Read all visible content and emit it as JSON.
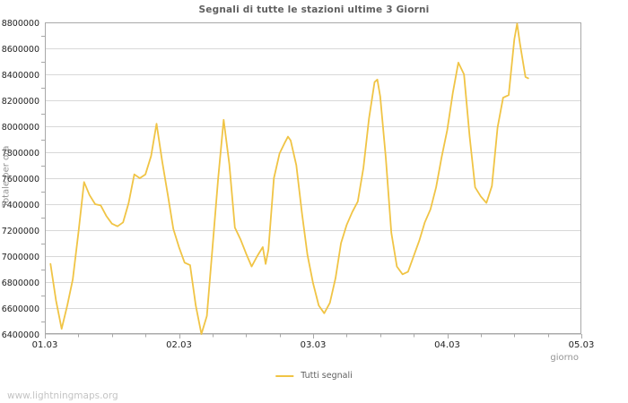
{
  "watermark": "www.lightningmaps.org",
  "colors": {
    "line": "#f0c445",
    "grid": "#d8d8d8",
    "axis": "#a8a8a8",
    "tick_text": "#1f1f1f",
    "title_text": "#5f5f5f",
    "axis_label_text": "#949494",
    "legend_text": "#606060",
    "watermark_text": "#c4c4c4"
  },
  "chart_data": {
    "type": "line",
    "title": "Segnali di tutte le stazioni ultime 3 Giorni",
    "xlabel": "giorno",
    "ylabel": "Totale per ora",
    "xlim": [
      1,
      5
    ],
    "ylim": [
      6400000,
      8800000
    ],
    "y_major_step": 200000,
    "y_minor_step": 100000,
    "x_major_step": 1,
    "x_minor_step": 0.25,
    "grid": "horizontal-major",
    "legend_position": "bottom-center",
    "x_tick_labels": [
      {
        "pos": 1,
        "label": "01.03"
      },
      {
        "pos": 2,
        "label": "02.03"
      },
      {
        "pos": 3,
        "label": "03.03"
      },
      {
        "pos": 4,
        "label": "04.03"
      },
      {
        "pos": 5,
        "label": "05.03"
      }
    ],
    "series": [
      {
        "name": "Tutti segnali",
        "color": "#f0c445",
        "x_day": [
          1.042,
          1.083,
          1.125,
          1.167,
          1.208,
          1.25,
          1.292,
          1.333,
          1.375,
          1.417,
          1.458,
          1.5,
          1.542,
          1.583,
          1.625,
          1.667,
          1.708,
          1.75,
          1.792,
          1.833,
          1.875,
          1.917,
          1.958,
          2.0,
          2.042,
          2.083,
          2.125,
          2.167,
          2.208,
          2.25,
          2.292,
          2.333,
          2.375,
          2.417,
          2.458,
          2.5,
          2.542,
          2.583,
          2.625,
          2.646,
          2.667,
          2.708,
          2.75,
          2.792,
          2.813,
          2.833,
          2.875,
          2.917,
          2.958,
          3.0,
          3.042,
          3.083,
          3.125,
          3.167,
          3.208,
          3.25,
          3.292,
          3.333,
          3.375,
          3.417,
          3.458,
          3.479,
          3.5,
          3.542,
          3.583,
          3.625,
          3.667,
          3.708,
          3.75,
          3.792,
          3.833,
          3.875,
          3.917,
          3.958,
          4.0,
          4.042,
          4.083,
          4.125,
          4.167,
          4.208,
          4.25,
          4.292,
          4.333,
          4.375,
          4.417,
          4.458,
          4.5,
          4.521,
          4.542,
          4.583,
          4.604
        ],
        "values": [
          6940000,
          6660000,
          6440000,
          6620000,
          6820000,
          7180000,
          7570000,
          7470000,
          7400000,
          7390000,
          7310000,
          7250000,
          7230000,
          7260000,
          7410000,
          7630000,
          7600000,
          7630000,
          7770000,
          8020000,
          7730000,
          7470000,
          7210000,
          7070000,
          6950000,
          6930000,
          6620000,
          6400000,
          6540000,
          7070000,
          7600000,
          8050000,
          7710000,
          7220000,
          7130000,
          7020000,
          6920000,
          7000000,
          7070000,
          6940000,
          7050000,
          7600000,
          7790000,
          7880000,
          7920000,
          7890000,
          7700000,
          7330000,
          7010000,
          6790000,
          6620000,
          6560000,
          6640000,
          6830000,
          7100000,
          7240000,
          7340000,
          7420000,
          7680000,
          8060000,
          8340000,
          8360000,
          8230000,
          7760000,
          7180000,
          6920000,
          6860000,
          6880000,
          7000000,
          7120000,
          7260000,
          7360000,
          7530000,
          7760000,
          7970000,
          8260000,
          8490000,
          8400000,
          7920000,
          7530000,
          7460000,
          7410000,
          7540000,
          7990000,
          8220000,
          8240000,
          8670000,
          8790000,
          8640000,
          8380000,
          8370000
        ]
      }
    ]
  }
}
